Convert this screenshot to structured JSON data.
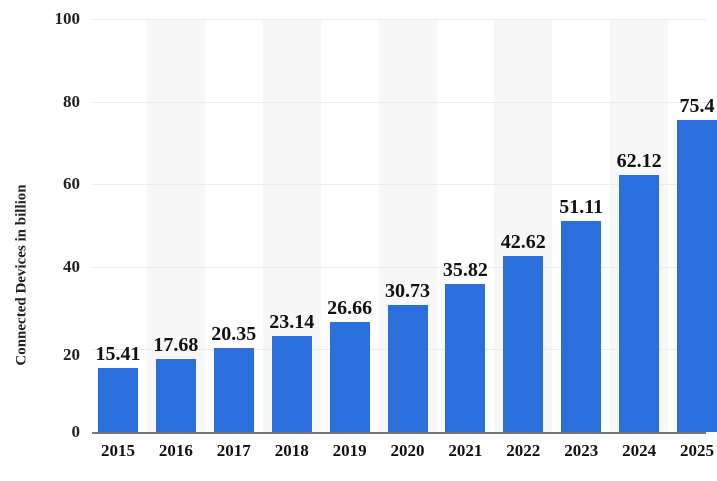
{
  "chart_data": {
    "type": "bar",
    "title": "",
    "xlabel": "",
    "ylabel": "Connected Devices in billion",
    "categories": [
      "2015",
      "2016",
      "2017",
      "2018",
      "2019",
      "2020",
      "2021",
      "2022",
      "2023",
      "2024",
      "2025"
    ],
    "values": [
      15.41,
      17.68,
      20.35,
      23.14,
      26.66,
      30.73,
      35.82,
      42.62,
      51.11,
      62.12,
      75.44
    ],
    "value_labels": [
      "15.41",
      "17.68",
      "20.35",
      "23.14",
      "26.66",
      "30.73",
      "35.82",
      "42.62",
      "51.11",
      "62.12",
      "75.4"
    ],
    "ylim": [
      0,
      100
    ],
    "yticks": [
      0,
      20,
      40,
      60,
      80,
      100
    ],
    "grid": true,
    "legend": null,
    "bar_color": "#2a6fdb"
  }
}
